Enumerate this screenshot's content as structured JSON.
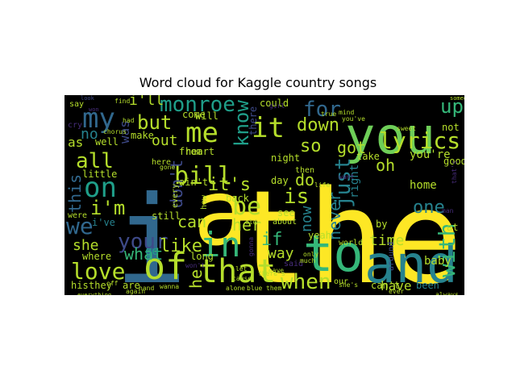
{
  "figure": {
    "title": "Word cloud for Kaggle country songs"
  },
  "colors": {
    "background": "#000000",
    "purple": "#472d7b",
    "indigo": "#3e4a89",
    "blue": "#31688e",
    "teal": "#26828e",
    "green_teal": "#1f9e89",
    "green": "#35b779",
    "light_green": "#6ece58",
    "yellow_green": "#b5de2b",
    "yellow": "#fde725"
  },
  "words": [
    {
      "text": "the",
      "color": "yellow"
    },
    {
      "text": "i",
      "color": "blue"
    },
    {
      "text": "you",
      "color": "light_green"
    },
    {
      "text": "and",
      "color": "teal"
    },
    {
      "text": "a",
      "color": "yellow"
    },
    {
      "text": "to",
      "color": "green"
    },
    {
      "text": "of",
      "color": "yellow_green"
    },
    {
      "text": "that",
      "color": "yellow_green"
    },
    {
      "text": "in",
      "color": "green"
    },
    {
      "text": "me",
      "color": "yellow_green"
    },
    {
      "text": "my",
      "color": "blue"
    },
    {
      "text": "it",
      "color": "yellow_green"
    },
    {
      "text": "on",
      "color": "green_teal"
    },
    {
      "text": "monroe",
      "color": "green_teal"
    },
    {
      "text": "bill",
      "color": "yellow_green"
    },
    {
      "text": "be",
      "color": "yellow_green"
    },
    {
      "text": "lyrics",
      "color": "yellow_green"
    },
    {
      "text": "love",
      "color": "yellow_green"
    },
    {
      "text": "your",
      "color": "indigo"
    },
    {
      "text": "with",
      "color": "green"
    },
    {
      "text": "is",
      "color": "yellow_green"
    },
    {
      "text": "when",
      "color": "yellow_green"
    },
    {
      "text": "know",
      "color": "green_teal"
    },
    {
      "text": "for",
      "color": "blue"
    },
    {
      "text": "but",
      "color": "yellow_green"
    },
    {
      "text": "all",
      "color": "yellow_green"
    },
    {
      "text": "we",
      "color": "blue"
    },
    {
      "text": "i'm",
      "color": "yellow_green"
    },
    {
      "text": "just",
      "color": "teal"
    },
    {
      "text": "down",
      "color": "yellow_green"
    },
    {
      "text": "it's",
      "color": "yellow_green"
    },
    {
      "text": "like",
      "color": "yellow_green"
    },
    {
      "text": "what",
      "color": "green"
    },
    {
      "text": "so",
      "color": "yellow_green"
    },
    {
      "text": "got",
      "color": "yellow_green"
    },
    {
      "text": "up",
      "color": "green"
    },
    {
      "text": "oh",
      "color": "yellow_green"
    },
    {
      "text": "one",
      "color": "teal"
    },
    {
      "text": "i'll",
      "color": "yellow_green"
    },
    {
      "text": "don't",
      "color": "indigo"
    },
    {
      "text": "this",
      "color": "blue"
    },
    {
      "text": "never",
      "color": "teal"
    },
    {
      "text": "can",
      "color": "yellow_green"
    },
    {
      "text": "her",
      "color": "yellow_green"
    },
    {
      "text": "do",
      "color": "yellow_green"
    },
    {
      "text": "if",
      "color": "green"
    },
    {
      "text": "way",
      "color": "yellow_green"
    },
    {
      "text": "now",
      "color": "teal"
    },
    {
      "text": "she",
      "color": "yellow_green"
    },
    {
      "text": "time",
      "color": "yellow_green"
    },
    {
      "text": "he",
      "color": "yellow_green"
    },
    {
      "text": "have",
      "color": "yellow_green"
    },
    {
      "text": "out",
      "color": "yellow_green"
    },
    {
      "text": "no",
      "color": "teal"
    },
    {
      "text": "as",
      "color": "yellow_green"
    },
    {
      "text": "was",
      "color": "indigo"
    },
    {
      "text": "right",
      "color": "teal"
    },
    {
      "text": "you're",
      "color": "yellow_green"
    },
    {
      "text": "home",
      "color": "yellow_green"
    },
    {
      "text": "baby",
      "color": "yellow_green"
    },
    {
      "text": "go",
      "color": "green_teal"
    },
    {
      "text": "not",
      "color": "yellow_green"
    },
    {
      "text": "there",
      "color": "indigo"
    },
    {
      "text": "said",
      "color": "purple"
    },
    {
      "text": "heart",
      "color": "yellow_green"
    },
    {
      "text": "from",
      "color": "yellow_green"
    },
    {
      "text": "well",
      "color": "yellow_green"
    },
    {
      "text": "make",
      "color": "yellow_green"
    },
    {
      "text": "little",
      "color": "yellow_green"
    },
    {
      "text": "could",
      "color": "yellow_green"
    },
    {
      "text": "will",
      "color": "yellow_green"
    },
    {
      "text": "come",
      "color": "yellow_green"
    },
    {
      "text": "night",
      "color": "yellow_green"
    },
    {
      "text": "take",
      "color": "yellow_green"
    },
    {
      "text": "good",
      "color": "yellow_green"
    },
    {
      "text": "back",
      "color": "yellow_green"
    },
    {
      "text": "day",
      "color": "yellow_green"
    },
    {
      "text": "see",
      "color": "yellow_green"
    },
    {
      "text": "yeah",
      "color": "yellow_green"
    },
    {
      "text": "i've",
      "color": "teal"
    },
    {
      "text": "where",
      "color": "yellow_green"
    },
    {
      "text": "long",
      "color": "yellow_green"
    },
    {
      "text": "are",
      "color": "yellow_green"
    },
    {
      "text": "his",
      "color": "yellow_green"
    },
    {
      "text": "they",
      "color": "yellow_green"
    },
    {
      "text": "can't",
      "color": "yellow_green"
    },
    {
      "text": "been",
      "color": "teal"
    },
    {
      "text": "by",
      "color": "yellow_green"
    },
    {
      "text": "at",
      "color": "yellow_green"
    },
    {
      "text": "man",
      "color": "purple"
    },
    {
      "text": "ain't",
      "color": "yellow_green"
    },
    {
      "text": "every",
      "color": "yellow_green"
    },
    {
      "text": "still",
      "color": "yellow_green"
    },
    {
      "text": "were",
      "color": "yellow_green"
    },
    {
      "text": "world",
      "color": "yellow_green"
    },
    {
      "text": "around",
      "color": "indigo"
    },
    {
      "text": "gonna",
      "color": "purple"
    },
    {
      "text": "then",
      "color": "yellow_green"
    },
    {
      "text": "about",
      "color": "yellow_green"
    },
    {
      "text": "how",
      "color": "yellow_green"
    },
    {
      "text": "here",
      "color": "yellow_green"
    },
    {
      "text": "had",
      "color": "yellow_green"
    },
    {
      "text": "girl",
      "color": "purple"
    },
    {
      "text": "want",
      "color": "purple"
    },
    {
      "text": "our",
      "color": "yellow_green"
    },
    {
      "text": "only",
      "color": "yellow_green"
    },
    {
      "text": "much",
      "color": "yellow_green"
    },
    {
      "text": "wanna",
      "color": "yellow_green"
    },
    {
      "text": "alone",
      "color": "yellow_green"
    },
    {
      "text": "blue",
      "color": "yellow_green"
    },
    {
      "text": "them",
      "color": "yellow_green"
    },
    {
      "text": "again",
      "color": "yellow_green"
    },
    {
      "text": "hand",
      "color": "yellow_green"
    },
    {
      "text": "off",
      "color": "yellow_green"
    },
    {
      "text": "mind",
      "color": "yellow_green"
    },
    {
      "text": "find",
      "color": "yellow_green"
    },
    {
      "text": "say",
      "color": "yellow_green"
    },
    {
      "text": "cry",
      "color": "purple"
    },
    {
      "text": "life",
      "color": "yellow_green"
    },
    {
      "text": "sweet",
      "color": "yellow_green"
    },
    {
      "text": "ever",
      "color": "yellow_green"
    },
    {
      "text": "always",
      "color": "yellow_green"
    },
    {
      "text": "everything",
      "color": "yellow_green"
    },
    {
      "text": "chorus",
      "color": "yellow_green"
    },
    {
      "text": "leave",
      "color": "yellow_green"
    },
    {
      "text": "gone",
      "color": "yellow_green"
    },
    {
      "text": "true",
      "color": "yellow_green"
    },
    {
      "text": "that's",
      "color": "purple"
    },
    {
      "text": "won't",
      "color": "purple"
    },
    {
      "text": "she's",
      "color": "yellow_green"
    },
    {
      "text": "cause",
      "color": "yellow_green"
    },
    {
      "text": "old",
      "color": "yellow_green"
    },
    {
      "text": "there's",
      "color": "yellow_green"
    },
    {
      "text": "let",
      "color": "yellow_green"
    },
    {
      "text": "you've",
      "color": "yellow_green"
    },
    {
      "text": "look",
      "color": "indigo"
    },
    {
      "text": "someone",
      "color": "yellow_green"
    },
    {
      "text": "won",
      "color": "purple"
    }
  ]
}
